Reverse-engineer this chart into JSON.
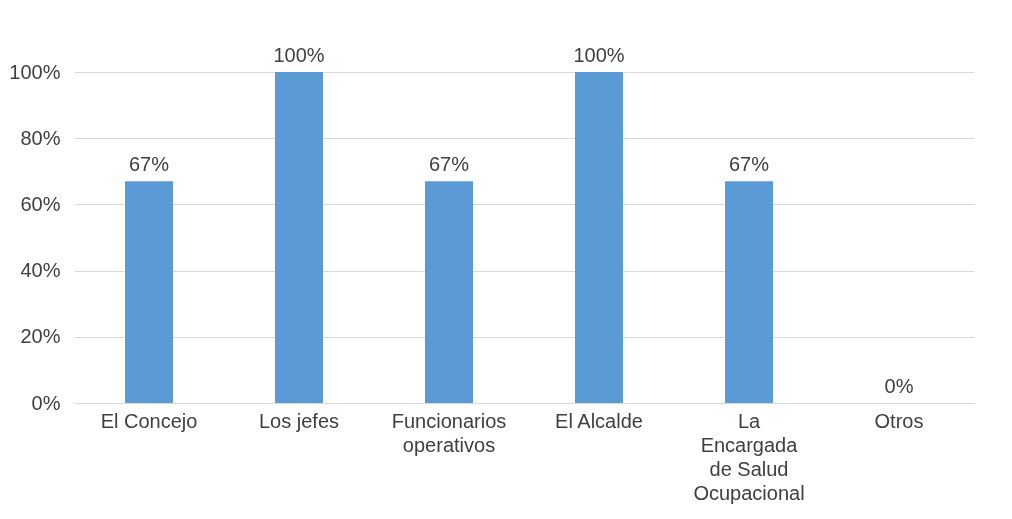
{
  "chart_data": {
    "type": "bar",
    "categories": [
      "El Concejo",
      "Los jefes",
      "Funcionarios operativos",
      "El Alcalde",
      "La Encargada de Salud Ocupacional",
      "Otros"
    ],
    "values": [
      67,
      100,
      67,
      100,
      67,
      0
    ],
    "value_labels": [
      "67%",
      "100%",
      "67%",
      "100%",
      "67%",
      "0%"
    ],
    "color": "#5b9bd5",
    "ylim": [
      0,
      100
    ],
    "yticks": [
      {
        "value": 0,
        "label": "0%"
      },
      {
        "value": 20,
        "label": "20%"
      },
      {
        "value": 40,
        "label": "40%"
      },
      {
        "value": 60,
        "label": "60%"
      },
      {
        "value": 80,
        "label": "80%"
      },
      {
        "value": 100,
        "label": "100%"
      }
    ],
    "grid": "y"
  }
}
